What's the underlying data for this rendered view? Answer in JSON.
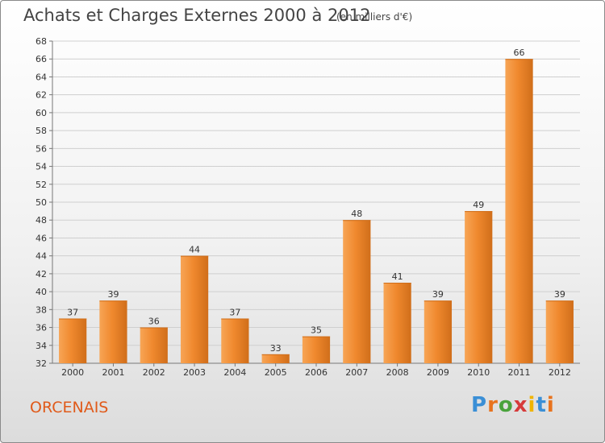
{
  "header": {
    "title": "Achats et Charges Externes 2000 à 2012",
    "unit": "(en milliers d'€)"
  },
  "footer": {
    "commune": "ORCENAIS",
    "logo_letters": [
      "P",
      "r",
      "o",
      "x",
      "i",
      "t",
      "i"
    ],
    "logo_colors": [
      "#3a8fd6",
      "#e8731e",
      "#4aa33c",
      "#d63a3a",
      "#f0b400",
      "#3a8fd6",
      "#e8731e"
    ]
  },
  "colors": {
    "bar": "#f0892e",
    "bar_light": "#f7a556",
    "bar_dark": "#d06e1a",
    "commune_text": "#e05a1a"
  },
  "chart_data": {
    "type": "bar",
    "title": "Achats et Charges Externes 2000 à 2012",
    "subtitle": "(en milliers d'€)",
    "categories": [
      "2000",
      "2001",
      "2002",
      "2003",
      "2004",
      "2005",
      "2006",
      "2007",
      "2008",
      "2009",
      "2010",
      "2011",
      "2012"
    ],
    "values": [
      37,
      39,
      36,
      44,
      37,
      33,
      35,
      48,
      41,
      39,
      49,
      66,
      39
    ],
    "ylim": [
      32,
      68
    ],
    "yticks": [
      32,
      34,
      36,
      38,
      40,
      42,
      44,
      46,
      48,
      50,
      52,
      54,
      56,
      58,
      60,
      62,
      64,
      66,
      68
    ],
    "grid": true,
    "data_labels": true
  }
}
